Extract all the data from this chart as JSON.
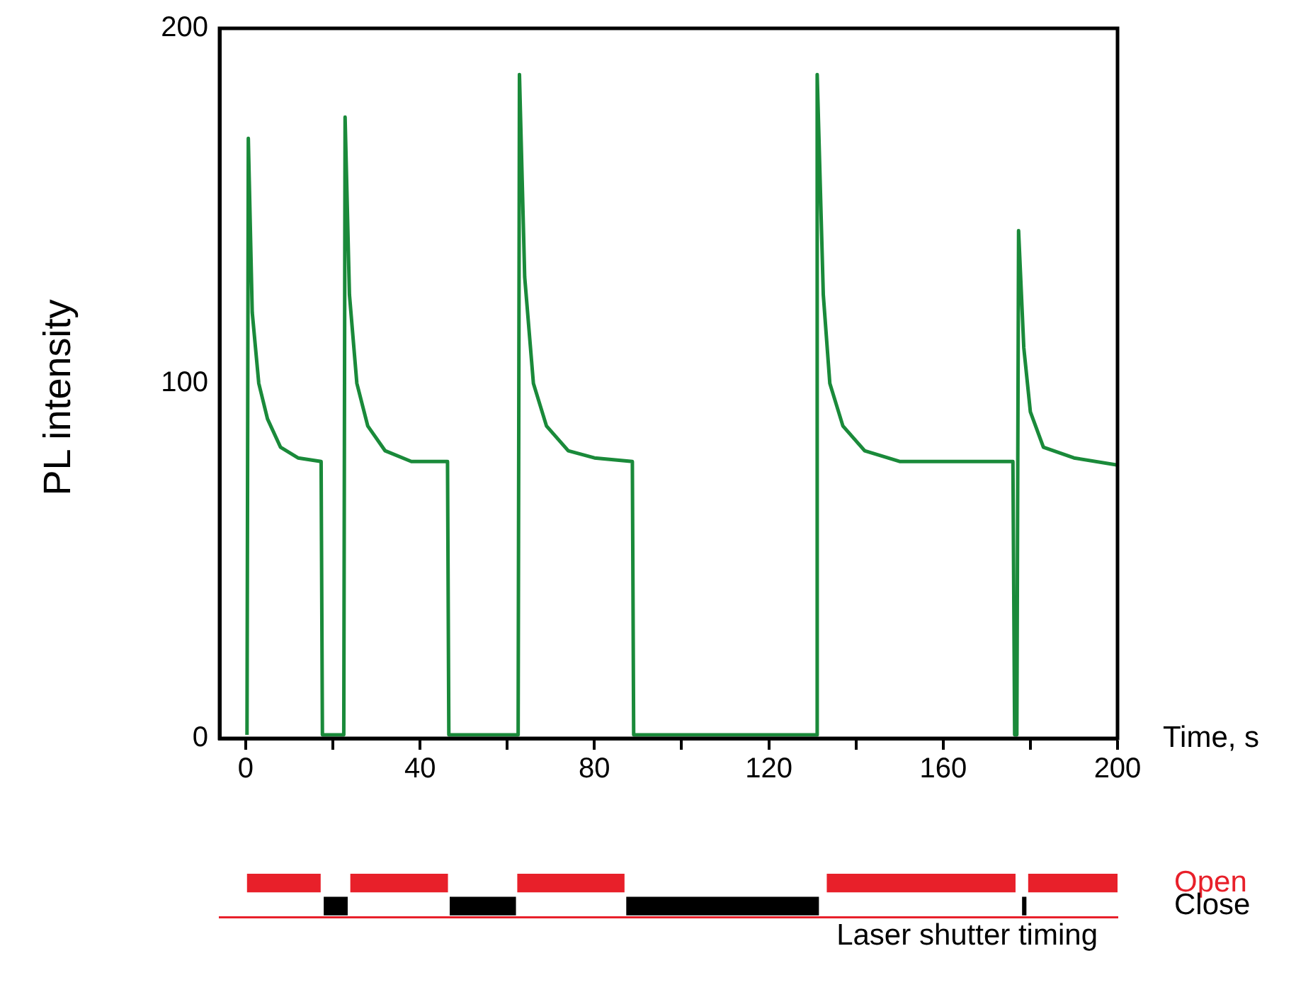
{
  "chart_data": [
    {
      "type": "line",
      "xlabel": "Time, s",
      "ylabel": "PL intensity",
      "xlim": [
        -6,
        200
      ],
      "ylim": [
        0,
        200
      ],
      "xticks": [
        0,
        {
          "value": 20,
          "label": null
        },
        40,
        {
          "value": 60,
          "label": null
        },
        80,
        {
          "value": 100,
          "label": null
        },
        120,
        {
          "value": 140,
          "label": null
        },
        160,
        {
          "value": 180,
          "label": null
        },
        200
      ],
      "yticks": [
        0,
        100,
        200
      ],
      "grid": false,
      "legend": false,
      "marker": "none",
      "line_style": "solid",
      "series": [
        {
          "color": "#1a8a3a",
          "x": [
            0.3,
            0.6,
            1.5,
            3,
            5,
            8,
            12,
            17.3,
            17.6,
            22.5,
            22.8,
            23.8,
            25.5,
            28,
            32,
            38,
            46.3,
            46.6,
            62.5,
            62.8,
            64,
            66,
            69,
            74,
            80,
            88.7,
            89,
            130.8,
            131.1,
            132.5,
            134,
            137,
            142,
            150,
            160,
            176,
            176.4,
            176.9,
            177.3,
            178.5,
            180,
            183,
            190,
            200
          ],
          "values": [
            1,
            169,
            120,
            100,
            90,
            82,
            79,
            78,
            1,
            1,
            175,
            125,
            100,
            88,
            81,
            78,
            78,
            1,
            1,
            187,
            130,
            100,
            88,
            81,
            79,
            78,
            1,
            1,
            187,
            125,
            100,
            88,
            81,
            78,
            78,
            78,
            1,
            1,
            143,
            110,
            92,
            82,
            79,
            77
          ]
        }
      ]
    },
    {
      "type": "bar",
      "orientation": "horizontal",
      "xlabel": "Laser shutter timing",
      "categories": [
        "Open",
        "Close"
      ],
      "xlim": [
        -6,
        200
      ],
      "tick_labels": "y",
      "legend": false,
      "series": [
        {
          "colors": [
            "#e8202a",
            "#000000"
          ],
          "base": [
            0.3,
            17.9
          ],
          "values": [
            16.9,
            5.5
          ]
        },
        {
          "colors": [
            "#e8202a",
            "#000000"
          ],
          "base": [
            24,
            46.8
          ],
          "values": [
            22.4,
            15.2
          ]
        },
        {
          "colors": [
            "#e8202a",
            "#000000"
          ],
          "base": [
            62.3,
            87.3
          ],
          "values": [
            24.6,
            44.2
          ]
        },
        {
          "colors": [
            "#e8202a",
            "#000000"
          ],
          "base": [
            133.3,
            178.1
          ],
          "values": [
            43.3,
            1
          ]
        },
        {
          "colors": [
            "#e8202a",
            null
          ],
          "base": [
            179.5,
            null
          ],
          "values": [
            20.5,
            null
          ]
        }
      ]
    }
  ]
}
